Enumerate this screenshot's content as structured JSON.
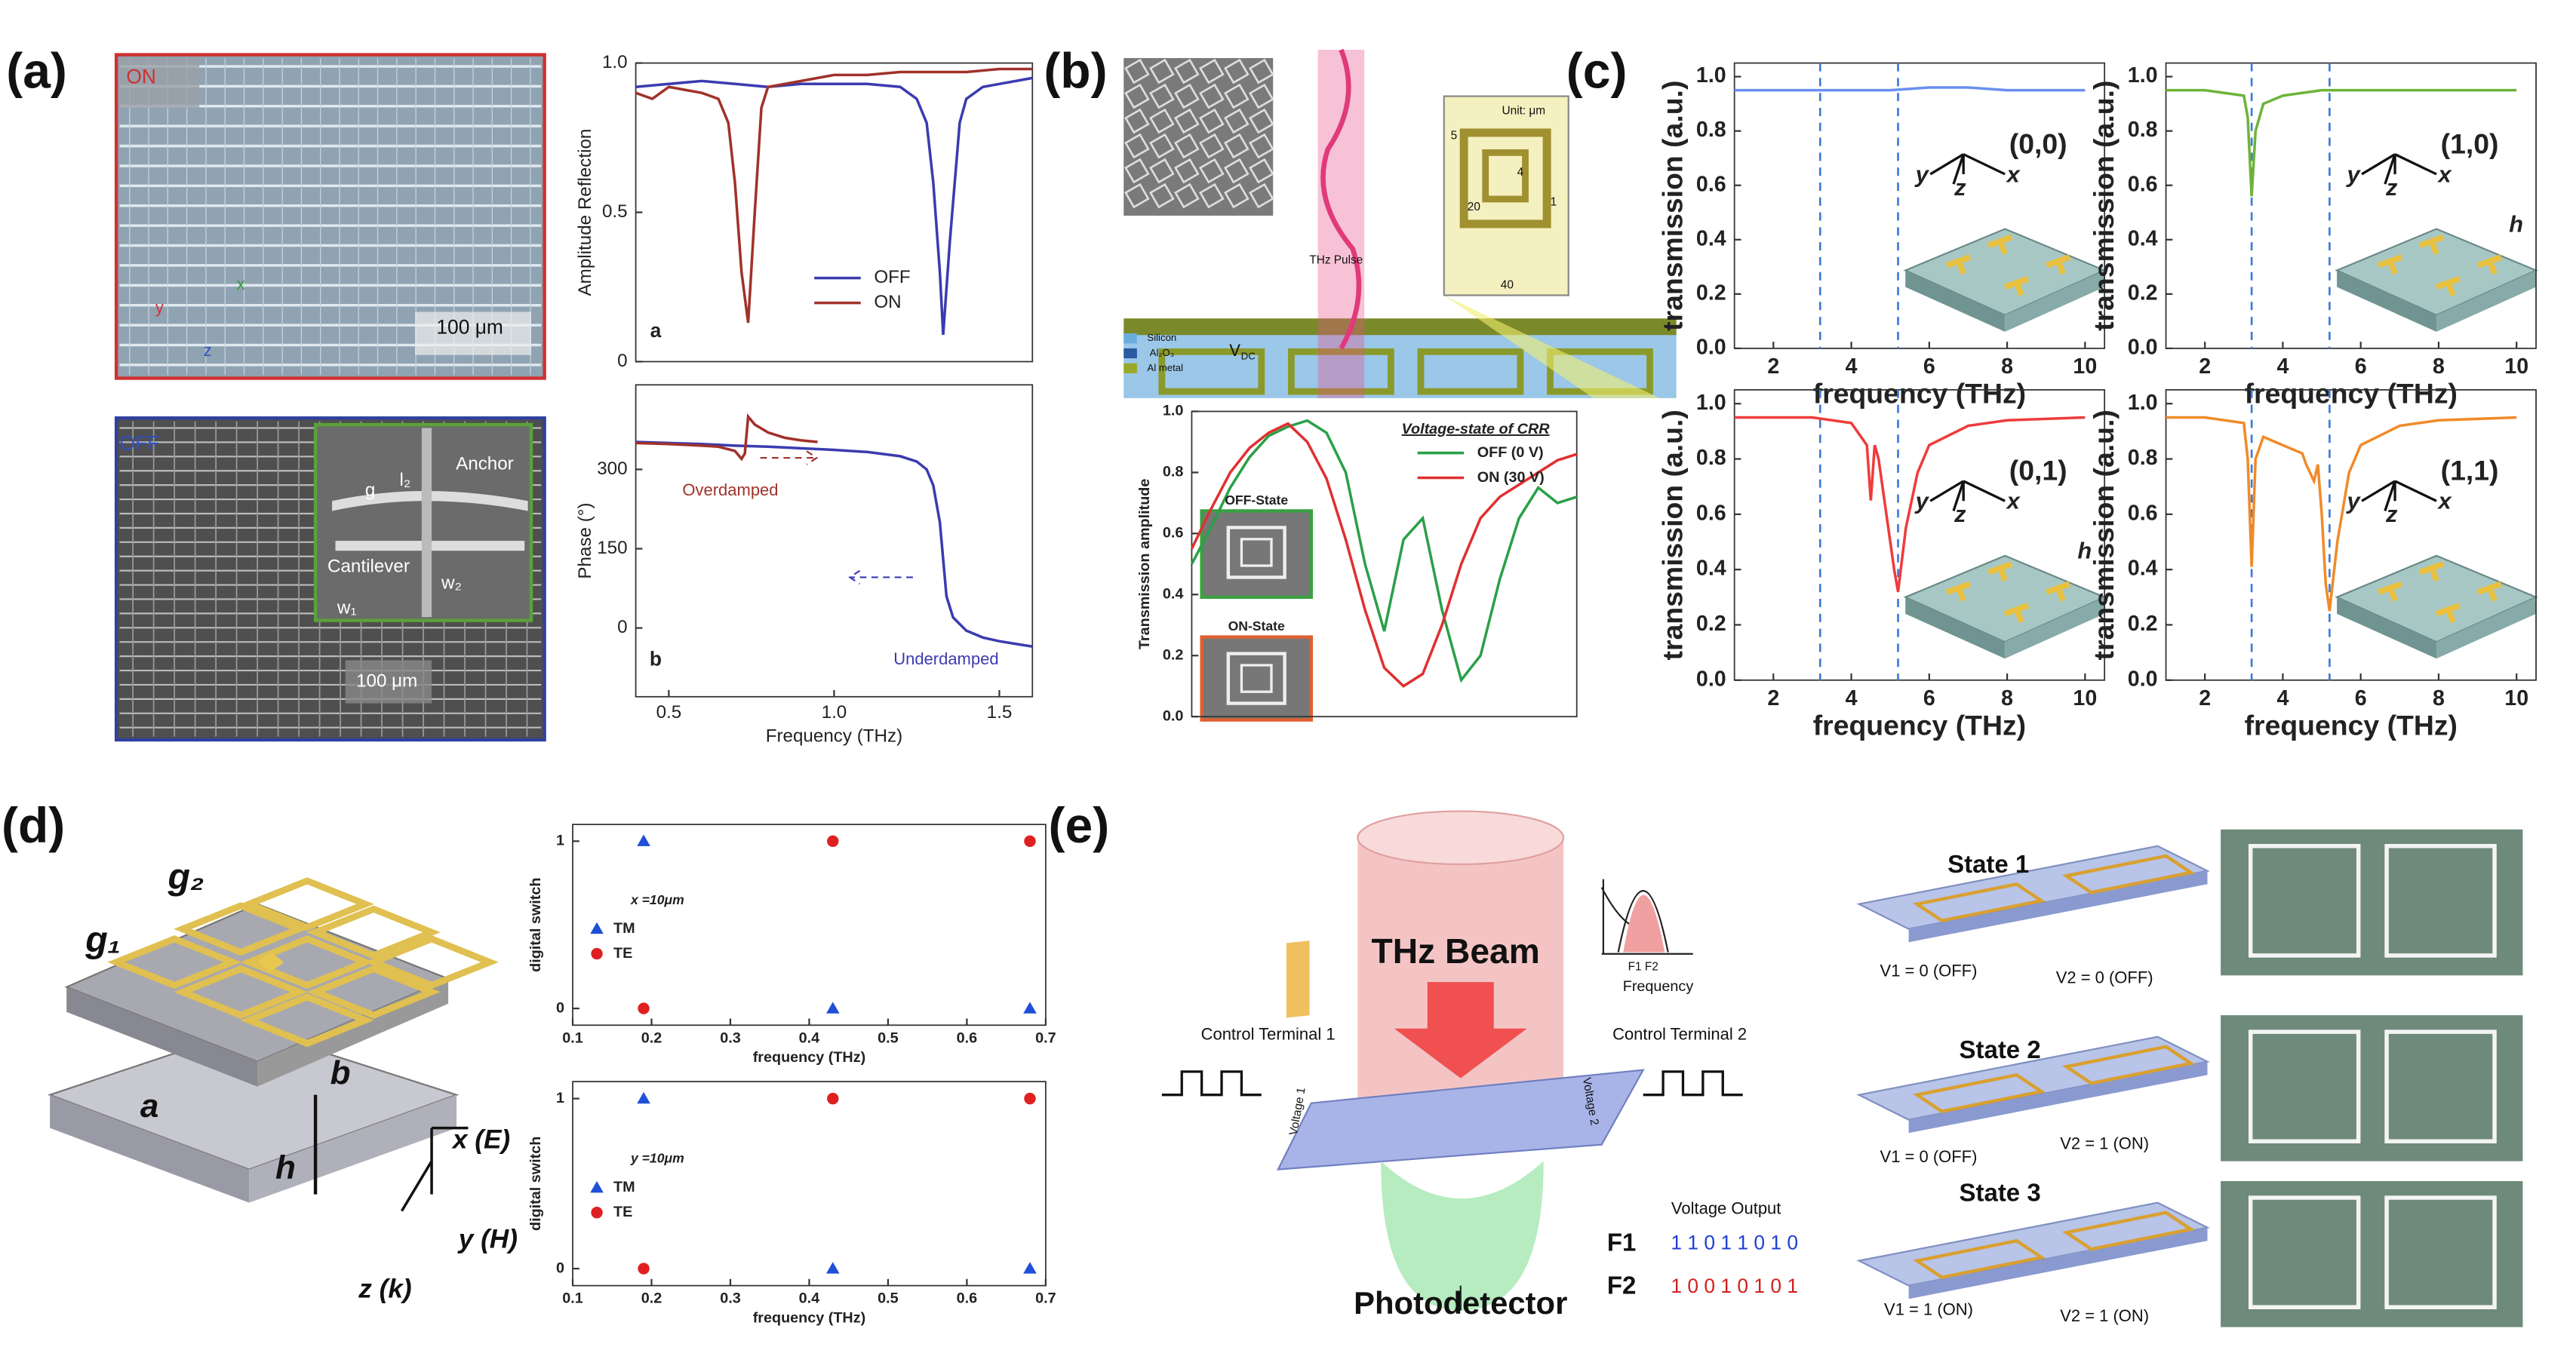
{
  "panels": [
    {
      "label": "(a)",
      "texts": [
        "ON",
        "100 μm",
        "x",
        "y",
        "z",
        "OFF",
        "Anchor",
        "g",
        "l₂",
        "Cantilever",
        "w₂",
        "l₁",
        "w₁",
        "100 μm"
      ]
    },
    {
      "label": "(b)",
      "texts": [
        "Unit: μm",
        "5",
        "4",
        "20",
        "1",
        "40",
        "THz Pulse",
        "V",
        "DC",
        "Silicon",
        "Al₂O₃",
        "Al metal"
      ]
    },
    {
      "label": "(c)",
      "texts": []
    },
    {
      "label": "(d)",
      "texts": [
        "g₁",
        "g₂",
        "a",
        "b",
        "h",
        "x (E)",
        "y (H)",
        "z (k)"
      ]
    },
    {
      "label": "(e)",
      "texts": [
        "THz Beam",
        "F1 F2",
        "Frequency",
        "Control Terminal 1",
        "Control Terminal 2",
        "Voltage 1",
        "Voltage 2",
        "Photodetector",
        "Voltage Output",
        "F1",
        "1 1 0 1 1 0 1 0",
        "F2",
        "1 0 0 1 0 1 0 1",
        "State 1",
        "V1 = 0 (OFF)",
        "V2 = 0 (OFF)",
        "State 2",
        "V1 = 0 (OFF)",
        "V2 = 1 (ON)",
        "State 3",
        "V1 = 1 (ON)",
        "V2 = 1 (ON)"
      ]
    }
  ],
  "chart_data": [
    {
      "type": "line",
      "ylabel": "Amplitude Reflection",
      "xlim": [
        0.4,
        1.6
      ],
      "ylim": [
        0,
        1
      ],
      "yticks": [
        0,
        0.5,
        {
          "value": 1,
          "label": "1.0"
        }
      ],
      "legend": "lower center",
      "annotations": [
        "a"
      ],
      "series": [
        {
          "name": "OFF",
          "color": "#3b3bb0",
          "x": [
            0.4,
            0.5,
            0.6,
            0.7,
            0.8,
            0.9,
            1.0,
            1.1,
            1.2,
            1.25,
            1.28,
            1.3,
            1.32,
            1.33,
            1.35,
            1.38,
            1.4,
            1.45,
            1.5,
            1.55,
            1.6
          ],
          "values": [
            0.92,
            0.93,
            0.94,
            0.93,
            0.92,
            0.93,
            0.93,
            0.93,
            0.92,
            0.88,
            0.8,
            0.6,
            0.3,
            0.09,
            0.4,
            0.8,
            0.88,
            0.92,
            0.93,
            0.94,
            0.95
          ]
        },
        {
          "name": "ON",
          "color": "#a0322a",
          "x": [
            0.4,
            0.45,
            0.5,
            0.55,
            0.6,
            0.65,
            0.68,
            0.7,
            0.72,
            0.74,
            0.76,
            0.78,
            0.8,
            0.85,
            0.9,
            0.95,
            1.0,
            1.1,
            1.2,
            1.3,
            1.4,
            1.5,
            1.6
          ],
          "values": [
            0.9,
            0.88,
            0.92,
            0.91,
            0.9,
            0.88,
            0.8,
            0.6,
            0.3,
            0.13,
            0.5,
            0.85,
            0.92,
            0.93,
            0.94,
            0.95,
            0.96,
            0.96,
            0.97,
            0.97,
            0.97,
            0.98,
            0.98
          ]
        }
      ]
    },
    {
      "type": "line",
      "ylabel": "Phase (°)",
      "xlabel": "Frequency (THz)",
      "xlim": [
        0.4,
        1.6
      ],
      "ylim": [
        -130,
        460
      ],
      "xticks": [
        0.5,
        {
          "value": 1,
          "label": "1.0"
        },
        1.5
      ],
      "yticks": [
        0,
        150,
        300
      ],
      "annotations": [
        "b",
        "Overdamped",
        "Underdamped"
      ],
      "series": [
        {
          "name": "OFF",
          "color": "#3b3bb0",
          "x": [
            0.4,
            0.5,
            0.6,
            0.7,
            0.8,
            0.9,
            1.0,
            1.1,
            1.2,
            1.25,
            1.28,
            1.3,
            1.32,
            1.34,
            1.36,
            1.4,
            1.45,
            1.5,
            1.55,
            1.6
          ],
          "values": [
            352,
            350,
            348,
            345,
            343,
            340,
            337,
            333,
            325,
            315,
            300,
            270,
            200,
            60,
            20,
            -5,
            -18,
            -25,
            -30,
            -35
          ]
        },
        {
          "name": "ON",
          "color": "#a0322a",
          "x": [
            0.4,
            0.5,
            0.6,
            0.65,
            0.7,
            0.72,
            0.73,
            0.74,
            0.76,
            0.8,
            0.85,
            0.9,
            0.95
          ],
          "values": [
            350,
            348,
            345,
            343,
            335,
            320,
            330,
            400,
            385,
            370,
            360,
            355,
            352
          ]
        }
      ]
    },
    {
      "type": "line",
      "ylabel": "Transmission amplitude",
      "xlim": [
        0,
        20
      ],
      "ylim": [
        0,
        1
      ],
      "x": [
        0,
        1,
        2,
        3,
        4,
        5,
        6,
        7,
        8,
        9,
        10,
        11,
        12,
        13,
        14,
        15,
        16,
        17,
        18,
        19,
        20
      ],
      "yticks": [
        {
          "value": 0,
          "label": "0.0"
        },
        0.2,
        0.4,
        0.6,
        0.8,
        {
          "value": 1,
          "label": "1.0"
        }
      ],
      "legend": "upper right",
      "legend_title": "Voltage-state of CRR",
      "annotations": [
        "OFF-State",
        "ON-State"
      ],
      "series": [
        {
          "name": "OFF (0 V)",
          "color": "#2aa048",
          "values": [
            0.5,
            0.62,
            0.75,
            0.85,
            0.92,
            0.95,
            0.97,
            0.93,
            0.8,
            0.5,
            0.28,
            0.58,
            0.65,
            0.35,
            0.12,
            0.2,
            0.45,
            0.65,
            0.75,
            0.7,
            0.72
          ]
        },
        {
          "name": "ON (30 V)",
          "color": "#e03030",
          "values": [
            0.55,
            0.68,
            0.8,
            0.88,
            0.93,
            0.96,
            0.9,
            0.78,
            0.58,
            0.35,
            0.16,
            0.1,
            0.14,
            0.3,
            0.5,
            0.65,
            0.72,
            0.76,
            0.8,
            0.84,
            0.86
          ]
        }
      ]
    },
    {
      "type": "line",
      "ylabel": "transmission (a.u.)",
      "xlabel": "frequency (THz)",
      "xlim": [
        1,
        10.5
      ],
      "ylim": [
        0,
        1.05
      ],
      "xticks": [
        2,
        4,
        6,
        8,
        10
      ],
      "yticks": [
        {
          "value": 0,
          "label": "0.0"
        },
        0.2,
        0.4,
        0.6,
        0.8,
        {
          "value": 1,
          "label": "1.0"
        }
      ],
      "vlines": [
        3.2,
        5.2
      ],
      "annotations": [
        "(0,0)",
        "y",
        "z",
        "x"
      ],
      "series": [
        {
          "color": "#6a8ff0",
          "x": [
            1,
            2,
            3,
            4,
            5,
            6,
            7,
            8,
            9,
            10
          ],
          "values": [
            0.95,
            0.95,
            0.95,
            0.95,
            0.95,
            0.96,
            0.96,
            0.95,
            0.95,
            0.95
          ]
        }
      ]
    },
    {
      "type": "line",
      "ylabel": "transmission (a.u.)",
      "xlabel": "frequency (THz)",
      "xlim": [
        1,
        10.5
      ],
      "ylim": [
        0,
        1.05
      ],
      "xticks": [
        2,
        4,
        6,
        8,
        10
      ],
      "yticks": [
        {
          "value": 0,
          "label": "0.0"
        },
        0.2,
        0.4,
        0.6,
        0.8,
        {
          "value": 1,
          "label": "1.0"
        }
      ],
      "vlines": [
        3.2,
        5.2
      ],
      "annotations": [
        "(1,0)",
        "y",
        "z",
        "x",
        "h"
      ],
      "series": [
        {
          "color": "#6fb33a",
          "x": [
            1,
            2,
            3,
            3.1,
            3.2,
            3.3,
            3.5,
            4,
            5,
            6,
            8,
            10
          ],
          "values": [
            0.95,
            0.95,
            0.93,
            0.85,
            0.56,
            0.8,
            0.9,
            0.93,
            0.95,
            0.95,
            0.95,
            0.95
          ]
        }
      ]
    },
    {
      "type": "line",
      "ylabel": "transmission (a.u.)",
      "xlabel": "frequency (THz)",
      "xlim": [
        1,
        10.5
      ],
      "ylim": [
        0,
        1.05
      ],
      "xticks": [
        2,
        4,
        6,
        8,
        10
      ],
      "yticks": [
        {
          "value": 0,
          "label": "0.0"
        },
        0.2,
        0.4,
        0.6,
        0.8,
        {
          "value": 1,
          "label": "1.0"
        }
      ],
      "vlines": [
        3.2,
        5.2
      ],
      "annotations": [
        "(0,1)",
        "y",
        "z",
        "x",
        "h"
      ],
      "series": [
        {
          "color": "#ef3b3b",
          "x": [
            1,
            2,
            3,
            4,
            4.4,
            4.5,
            4.6,
            4.7,
            4.9,
            5.1,
            5.2,
            5.4,
            5.7,
            6,
            7,
            8,
            10
          ],
          "values": [
            0.95,
            0.95,
            0.95,
            0.93,
            0.85,
            0.65,
            0.85,
            0.8,
            0.6,
            0.4,
            0.32,
            0.55,
            0.75,
            0.85,
            0.92,
            0.94,
            0.95
          ]
        }
      ]
    },
    {
      "type": "line",
      "ylabel": "transmission (a.u.)",
      "xlabel": "frequency (THz)",
      "xlim": [
        1,
        10.5
      ],
      "ylim": [
        0,
        1.05
      ],
      "xticks": [
        2,
        4,
        6,
        8,
        10
      ],
      "yticks": [
        {
          "value": 0,
          "label": "0.0"
        },
        0.2,
        0.4,
        0.6,
        0.8,
        {
          "value": 1,
          "label": "1.0"
        }
      ],
      "vlines": [
        3.2,
        5.2
      ],
      "annotations": [
        "(1,1)",
        "y",
        "z",
        "x"
      ],
      "series": [
        {
          "color": "#f08a2a",
          "x": [
            1,
            2,
            3,
            3.1,
            3.2,
            3.3,
            3.5,
            4,
            4.5,
            4.6,
            4.8,
            4.9,
            5.0,
            5.1,
            5.2,
            5.4,
            5.7,
            6,
            7,
            8,
            10
          ],
          "values": [
            0.95,
            0.95,
            0.93,
            0.8,
            0.41,
            0.8,
            0.88,
            0.85,
            0.82,
            0.78,
            0.72,
            0.78,
            0.6,
            0.35,
            0.25,
            0.5,
            0.75,
            0.85,
            0.92,
            0.94,
            0.95
          ]
        }
      ]
    },
    {
      "type": "scatter",
      "ylabel": "digital switch",
      "xlabel": "frequency (THz)",
      "xlim": [
        0.1,
        0.7
      ],
      "ylim": [
        -0.1,
        1.1
      ],
      "xticks": [
        0.1,
        0.2,
        0.3,
        0.4,
        0.5,
        0.6,
        0.7
      ],
      "yticks": [
        0,
        1
      ],
      "legend": "center left",
      "annotations": [
        "x =10μm"
      ],
      "series": [
        {
          "name": "TM",
          "color": "#1f4fd8",
          "marker": "triangle",
          "x": [
            0.19,
            0.43,
            0.68
          ],
          "values": [
            1,
            0,
            0
          ]
        },
        {
          "name": "TE",
          "color": "#e02020",
          "marker": "circle",
          "x": [
            0.19,
            0.43,
            0.68
          ],
          "values": [
            0,
            1,
            1
          ]
        }
      ]
    },
    {
      "type": "scatter",
      "ylabel": "digital switch",
      "xlabel": "frequency (THz)",
      "xlim": [
        0.1,
        0.7
      ],
      "ylim": [
        -0.1,
        1.1
      ],
      "xticks": [
        0.1,
        0.2,
        0.3,
        0.4,
        0.5,
        0.6,
        0.7
      ],
      "yticks": [
        0,
        1
      ],
      "legend": "center left",
      "annotations": [
        "y =10μm"
      ],
      "series": [
        {
          "name": "TM",
          "color": "#1f4fd8",
          "marker": "triangle",
          "x": [
            0.19,
            0.43,
            0.68
          ],
          "values": [
            1,
            0,
            0
          ]
        },
        {
          "name": "TE",
          "color": "#e02020",
          "marker": "circle",
          "x": [
            0.19,
            0.43,
            0.68
          ],
          "values": [
            0,
            1,
            1
          ]
        }
      ]
    }
  ]
}
